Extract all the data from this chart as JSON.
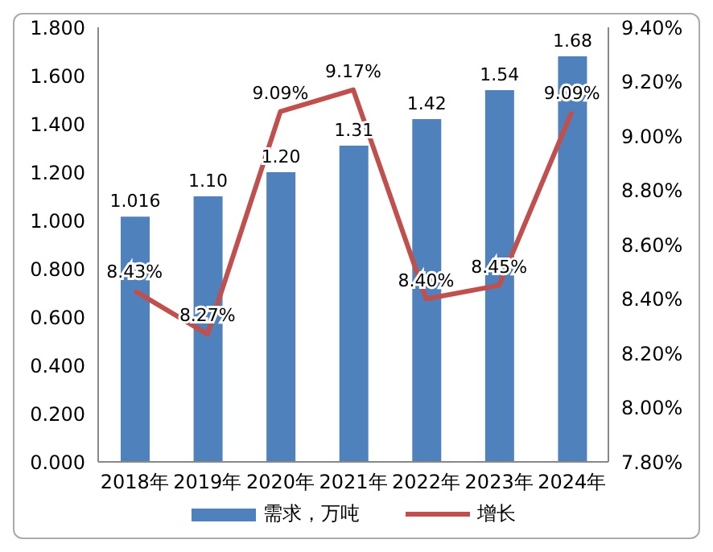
{
  "chart_data": {
    "type": "bar",
    "categories": [
      "2018年",
      "2019年",
      "2020年",
      "2021年",
      "2022年",
      "2023年",
      "2024年"
    ],
    "series": [
      {
        "name": "需求，万吨",
        "color": "#4f81bd",
        "values": [
          1.016,
          1.1,
          1.2,
          1.31,
          1.42,
          1.54,
          1.68
        ],
        "value_labels": [
          "1.016",
          "1.10",
          "1.20",
          "1.31",
          "1.42",
          "1.54",
          "1.68"
        ]
      },
      {
        "name": "增长",
        "type": "line",
        "axis": "y2",
        "color": "#c0504d",
        "values": [
          8.43,
          8.27,
          9.09,
          9.17,
          8.4,
          8.45,
          9.09
        ],
        "value_labels": [
          "8.43%",
          "8.27%",
          "9.09%",
          "9.17%",
          "8.40%",
          "8.45%",
          "9.09%"
        ]
      }
    ],
    "ylim": [
      0,
      1.8
    ],
    "yticks": [
      {
        "value": 0,
        "label": "0.000"
      },
      {
        "value": 0.2,
        "label": "0.200"
      },
      {
        "value": 0.4,
        "label": "0.400"
      },
      {
        "value": 0.6,
        "label": "0.600"
      },
      {
        "value": 0.8,
        "label": "0.800"
      },
      {
        "value": 1.0,
        "label": "1.000"
      },
      {
        "value": 1.2,
        "label": "1.200"
      },
      {
        "value": 1.4,
        "label": "1.400"
      },
      {
        "value": 1.6,
        "label": "1.600"
      },
      {
        "value": 1.8,
        "label": "1.800"
      }
    ],
    "y2lim": [
      7.8,
      9.4
    ],
    "y2ticks": [
      {
        "value": 7.8,
        "label": "7.80%"
      },
      {
        "value": 8.0,
        "label": "8.00%"
      },
      {
        "value": 8.2,
        "label": "8.20%"
      },
      {
        "value": 8.4,
        "label": "8.40%"
      },
      {
        "value": 8.6,
        "label": "8.60%"
      },
      {
        "value": 8.8,
        "label": "8.80%"
      },
      {
        "value": 9.0,
        "label": "9.00%"
      },
      {
        "value": 9.2,
        "label": "9.20%"
      },
      {
        "value": 9.4,
        "label": "9.40%"
      }
    ],
    "legend": "bottom",
    "marker": "none",
    "line_style": "solid"
  }
}
